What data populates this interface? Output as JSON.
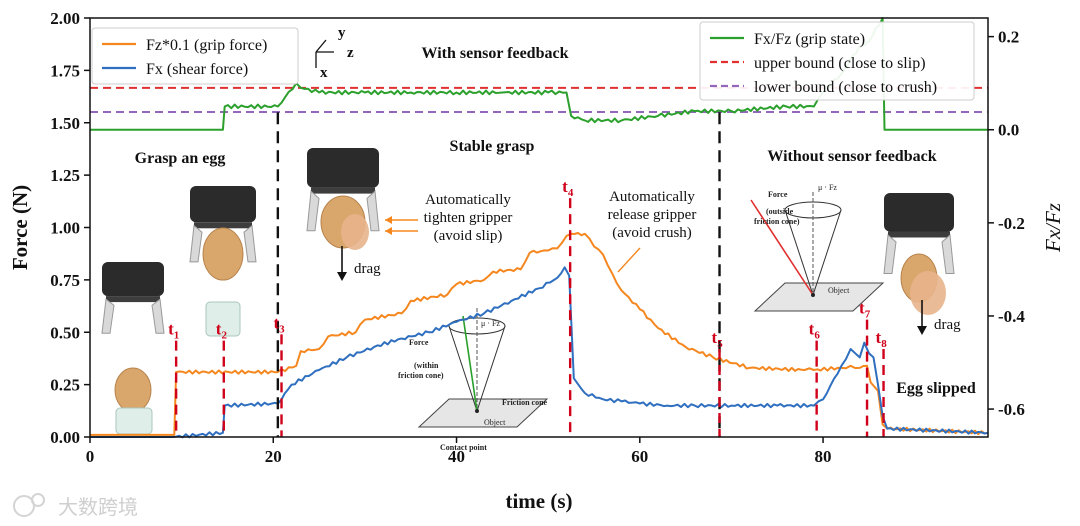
{
  "chart_data": {
    "type": "line",
    "xlabel": "time (s)",
    "ylabel_left": "Force (N)",
    "ylabel_right": "Fx/Fz",
    "xlim": [
      0,
      98
    ],
    "ylim_left": [
      0,
      2
    ],
    "ylim_right": [
      -0.66,
      0.24
    ],
    "x_ticks": [
      "0",
      "20",
      "40",
      "60",
      "80"
    ],
    "y_ticks_left": [
      "0.00",
      "0.25",
      "0.50",
      "0.75",
      "1.00",
      "1.25",
      "1.50",
      "1.75",
      "2.00"
    ],
    "y_ticks_right": [
      "-0.6",
      "-0.4",
      "-0.2",
      "0.0",
      "0.2"
    ],
    "legend_left": {
      "placement": "top-left",
      "entries": [
        {
          "label": "Fz*0.1 (grip force)",
          "color": "#f5871f"
        },
        {
          "label": "Fx (shear force)",
          "color": "#2f6fbf"
        }
      ]
    },
    "legend_right": {
      "placement": "top-right",
      "entries": [
        {
          "label": "Fx/Fz (grip state)",
          "color": "#2ca02c"
        },
        {
          "label": "upper bound (close to slip)",
          "color": "#e03030"
        },
        {
          "label": "lower bound (close to crush)",
          "color": "#9467bd"
        }
      ]
    },
    "series": [
      {
        "name": "Fz*0.1 (grip force)",
        "axis": "left",
        "color": "#f5871f",
        "x": [
          0,
          9.2,
          9.4,
          20.5,
          22.5,
          23,
          25,
          26,
          29,
          30,
          34,
          35,
          39,
          40,
          43,
          44,
          47,
          48,
          50,
          51,
          52,
          52.5,
          54,
          55,
          56,
          57,
          58,
          60,
          62,
          65,
          68,
          72,
          78,
          79,
          82,
          83,
          84,
          84.8,
          85.2,
          86,
          86.5,
          87,
          98
        ],
        "y": [
          0.01,
          0.01,
          0.31,
          0.31,
          0.34,
          0.41,
          0.42,
          0.48,
          0.5,
          0.56,
          0.59,
          0.65,
          0.68,
          0.73,
          0.75,
          0.79,
          0.8,
          0.88,
          0.89,
          0.9,
          0.96,
          0.97,
          0.97,
          0.91,
          0.87,
          0.78,
          0.7,
          0.61,
          0.52,
          0.43,
          0.38,
          0.33,
          0.32,
          0.32,
          0.33,
          0.34,
          0.33,
          0.34,
          0.26,
          0.22,
          0.06,
          0.04,
          0.02
        ]
      },
      {
        "name": "Fx (shear force)",
        "axis": "left",
        "color": "#2f6fbf",
        "x": [
          0,
          9,
          14.5,
          14.7,
          20.5,
          22,
          25,
          28,
          31,
          34,
          37,
          40,
          43,
          46,
          49,
          51,
          51.8,
          52.3,
          52.8,
          54,
          56,
          58,
          60,
          63,
          66,
          70,
          75,
          79,
          80,
          82,
          83,
          84,
          84.5,
          85,
          85.5,
          86,
          86.5,
          87,
          98
        ],
        "y": [
          0,
          0,
          0.02,
          0.15,
          0.16,
          0.25,
          0.32,
          0.38,
          0.43,
          0.47,
          0.5,
          0.55,
          0.59,
          0.65,
          0.71,
          0.76,
          0.81,
          0.77,
          0.28,
          0.21,
          0.18,
          0.17,
          0.16,
          0.15,
          0.15,
          0.15,
          0.15,
          0.15,
          0.18,
          0.34,
          0.42,
          0.38,
          0.45,
          0.4,
          0.38,
          0.25,
          0.1,
          0.04,
          0.02
        ]
      },
      {
        "name": "Fx/Fz (grip state)",
        "axis": "right",
        "color": "#2ca02c",
        "x": [
          0,
          14.5,
          14.7,
          20.5,
          22.5,
          23,
          25,
          30,
          35,
          40,
          45,
          50,
          52,
          52.5,
          54,
          58,
          62,
          66,
          70,
          76,
          79,
          80,
          82,
          84,
          85,
          86.5,
          86.7,
          98
        ],
        "y": [
          0.0,
          0.0,
          0.05,
          0.05,
          0.1,
          0.09,
          0.08,
          0.08,
          0.08,
          0.08,
          0.08,
          0.08,
          0.08,
          0.03,
          0.02,
          0.02,
          0.03,
          0.04,
          0.04,
          0.05,
          0.05,
          0.08,
          0.12,
          0.18,
          0.19,
          0.24,
          0.0,
          0.0
        ]
      },
      {
        "name": "upper bound (close to slip)",
        "axis": "right",
        "color": "#e03030",
        "dashed": true,
        "x": [
          0,
          98
        ],
        "y": [
          0.09,
          0.09
        ]
      },
      {
        "name": "lower bound (close to crush)",
        "axis": "right",
        "color": "#9467bd",
        "dashed": true,
        "x": [
          0,
          98
        ],
        "y": [
          0.038,
          0.038
        ]
      }
    ],
    "event_lines": [
      {
        "label": "t",
        "sub": "1",
        "x": 9.4,
        "y_top": 0.46
      },
      {
        "label": "t",
        "sub": "2",
        "x": 14.6,
        "y_top": 0.46
      },
      {
        "label": "t",
        "sub": "3",
        "x": 20.9,
        "y_top": 0.49
      },
      {
        "label": "t",
        "sub": "4",
        "x": 52.4,
        "y_top": 1.14
      },
      {
        "label": "t",
        "sub": "5",
        "x": 68.7,
        "y_top": 0.42
      },
      {
        "label": "t",
        "sub": "6",
        "x": 79.3,
        "y_top": 0.46
      },
      {
        "label": "t",
        "sub": "7",
        "x": 84.8,
        "y_top": 0.56
      },
      {
        "label": "t",
        "sub": "8",
        "x": 86.6,
        "y_top": 0.42
      }
    ],
    "phase_dividers": [
      20.5,
      68.7
    ],
    "annotations": {
      "with_feedback": "With sensor feedback",
      "grasp_egg": "Grasp an egg",
      "stable_grasp": "Stable grasp",
      "without_feedback": "Without sensor feedback",
      "tighten": [
        "Automatically",
        "tighten gripper",
        "(avoid slip)"
      ],
      "release": [
        "Automatically",
        "release gripper",
        "(avoid crush)"
      ],
      "drag1": "drag",
      "drag2": "drag",
      "egg_slipped": "Egg slipped"
    },
    "insets": {
      "cone_inside": {
        "force": "Force",
        "mu": "μ · Fz",
        "within": [
          "(within",
          "friction cone)"
        ],
        "friction_cone": "Friction cone",
        "object": "Object",
        "contact": "Contact point"
      },
      "cone_outside": {
        "force": "Force",
        "mu": "μ · Fz",
        "outside": [
          "(outside",
          "friction cone)"
        ],
        "object": "Object"
      },
      "axes_y": "y",
      "axes_z": "z",
      "axes_x": "x"
    }
  },
  "watermark": "大数跨境"
}
